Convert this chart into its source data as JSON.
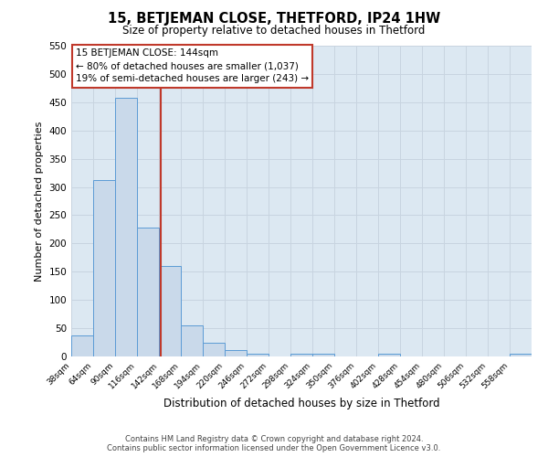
{
  "title": "15, BETJEMAN CLOSE, THETFORD, IP24 1HW",
  "subtitle": "Size of property relative to detached houses in Thetford",
  "xlabel": "Distribution of detached houses by size in Thetford",
  "ylabel": "Number of detached properties",
  "bin_labels": [
    "38sqm",
    "64sqm",
    "90sqm",
    "116sqm",
    "142sqm",
    "168sqm",
    "194sqm",
    "220sqm",
    "246sqm",
    "272sqm",
    "298sqm",
    "324sqm",
    "350sqm",
    "376sqm",
    "402sqm",
    "428sqm",
    "454sqm",
    "480sqm",
    "506sqm",
    "532sqm",
    "558sqm"
  ],
  "bin_edges": [
    38,
    64,
    90,
    116,
    142,
    168,
    194,
    220,
    246,
    272,
    298,
    324,
    350,
    376,
    402,
    428,
    454,
    480,
    506,
    532,
    558,
    584
  ],
  "bar_values": [
    38,
    312,
    458,
    228,
    160,
    55,
    25,
    12,
    5,
    0,
    5,
    5,
    0,
    0,
    5,
    0,
    0,
    0,
    0,
    0,
    5
  ],
  "bar_facecolor": "#c9d9ea",
  "bar_edgecolor": "#5b9bd5",
  "bar_linewidth": 0.7,
  "vline_x": 144,
  "vline_color": "#c0392b",
  "vline_linewidth": 1.5,
  "annotation_line1": "15 BETJEMAN CLOSE: 144sqm",
  "annotation_line2": "← 80% of detached houses are smaller (1,037)",
  "annotation_line3": "19% of semi-detached houses are larger (243) →",
  "box_edgecolor": "#c0392b",
  "ylim": [
    0,
    550
  ],
  "yticks": [
    0,
    50,
    100,
    150,
    200,
    250,
    300,
    350,
    400,
    450,
    500,
    550
  ],
  "grid_color": "#c8d4e0",
  "fig_background": "#ffffff",
  "plot_background": "#dce8f2",
  "footer_line1": "Contains HM Land Registry data © Crown copyright and database right 2024.",
  "footer_line2": "Contains public sector information licensed under the Open Government Licence v3.0."
}
